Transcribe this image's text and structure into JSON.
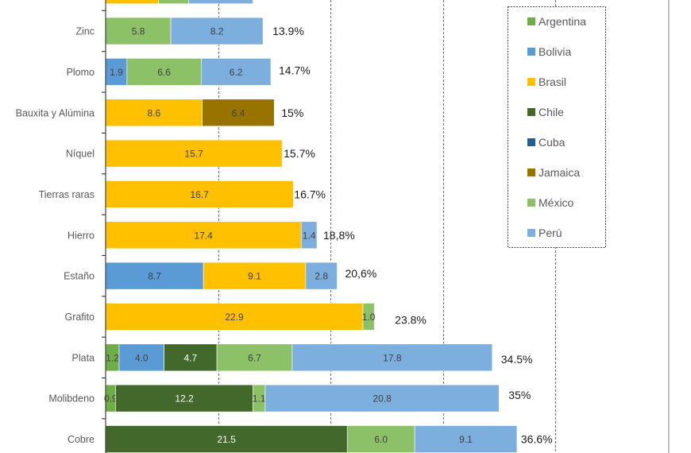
{
  "chart_data": {
    "type": "bar",
    "orientation": "horizontal",
    "stacked": true,
    "title": "",
    "xlabel": "",
    "ylabel": "",
    "xlim": [
      0,
      50
    ],
    "grid": "vertical dashed every 10",
    "legend_position": "top-right",
    "series": [
      {
        "name": "Argentina",
        "color": "#70AD47"
      },
      {
        "name": "Bolivia",
        "color": "#5B9BD5"
      },
      {
        "name": "Brasil",
        "color": "#FFC000"
      },
      {
        "name": "Chile",
        "color": "#43682B"
      },
      {
        "name": "Cuba",
        "color": "#255E91"
      },
      {
        "name": "Jamaica",
        "color": "#997300"
      },
      {
        "name": "México",
        "color": "#8CC168"
      },
      {
        "name": "Perú",
        "color": "#7CAFDD"
      }
    ],
    "categories": [
      {
        "label": "",
        "partial": true,
        "total_label": "",
        "segments": [
          {
            "series": "Brasil",
            "value": 4.7,
            "label": ""
          },
          {
            "series": "México",
            "value": 2.7,
            "label": ""
          },
          {
            "series": "Perú",
            "value": 5.7,
            "label": ""
          }
        ]
      },
      {
        "label": "Zinc",
        "total_label": "13.9%",
        "segments": [
          {
            "series": "México",
            "value": 5.8,
            "label": "5.8"
          },
          {
            "series": "Perú",
            "value": 8.2,
            "label": "8.2"
          }
        ]
      },
      {
        "label": "Plomo",
        "total_label": "14.7%",
        "segments": [
          {
            "series": "Bolivia",
            "value": 1.9,
            "label": "1.9"
          },
          {
            "series": "México",
            "value": 6.6,
            "label": "6.6"
          },
          {
            "series": "Perú",
            "value": 6.2,
            "label": "6.2"
          }
        ]
      },
      {
        "label": "Bauxita y Alúmina",
        "total_label": "15%",
        "segments": [
          {
            "series": "Brasil",
            "value": 8.6,
            "label": "8.6"
          },
          {
            "series": "Jamaica",
            "value": 6.4,
            "label": "6.4"
          }
        ]
      },
      {
        "label": "Níquel",
        "total_label": "15.7%",
        "segments": [
          {
            "series": "Brasil",
            "value": 15.7,
            "label": "15.7"
          }
        ]
      },
      {
        "label": "Tierras raras",
        "total_label": "16.7%",
        "segments": [
          {
            "series": "Brasil",
            "value": 16.7,
            "label": "16.7"
          }
        ]
      },
      {
        "label": "Hierro",
        "total_label": "18,8%",
        "segments": [
          {
            "series": "Brasil",
            "value": 17.4,
            "label": "17.4"
          },
          {
            "series": "Perú",
            "value": 1.4,
            "label": "1.4"
          }
        ]
      },
      {
        "label": "Estaño",
        "total_label": "20,6%",
        "segments": [
          {
            "series": "Bolivia",
            "value": 8.7,
            "label": "8.7"
          },
          {
            "series": "Brasil",
            "value": 9.1,
            "label": "9.1"
          },
          {
            "series": "Perú",
            "value": 2.8,
            "label": "2.8"
          }
        ]
      },
      {
        "label": "Grafito",
        "total_label": "23.8%",
        "segments": [
          {
            "series": "Brasil",
            "value": 22.9,
            "label": "22.9"
          },
          {
            "series": "México",
            "value": 1.0,
            "label": "1.0"
          }
        ]
      },
      {
        "label": "Plata",
        "total_label": "34.5%",
        "segments": [
          {
            "series": "Argentina",
            "value": 1.2,
            "label": "1.2"
          },
          {
            "series": "Bolivia",
            "value": 4.0,
            "label": "4.0"
          },
          {
            "series": "Chile",
            "value": 4.7,
            "label": "4.7"
          },
          {
            "series": "México",
            "value": 6.7,
            "label": "6.7"
          },
          {
            "series": "Perú",
            "value": 17.8,
            "label": "17.8"
          }
        ]
      },
      {
        "label": "Molibdeno",
        "total_label": "35%",
        "segments": [
          {
            "series": "Argentina",
            "value": 0.9,
            "label": "0.9"
          },
          {
            "series": "Chile",
            "value": 12.2,
            "label": "12.2"
          },
          {
            "series": "México",
            "value": 1.1,
            "label": "1.1"
          },
          {
            "series": "Perú",
            "value": 20.8,
            "label": "20.8"
          }
        ]
      },
      {
        "label": "Cobre",
        "total_label": "36.6%",
        "segments": [
          {
            "series": "Chile",
            "value": 21.5,
            "label": "21.5"
          },
          {
            "series": "México",
            "value": 6.0,
            "label": "6.0"
          },
          {
            "series": "Perú",
            "value": 9.1,
            "label": "9.1"
          }
        ]
      }
    ]
  }
}
